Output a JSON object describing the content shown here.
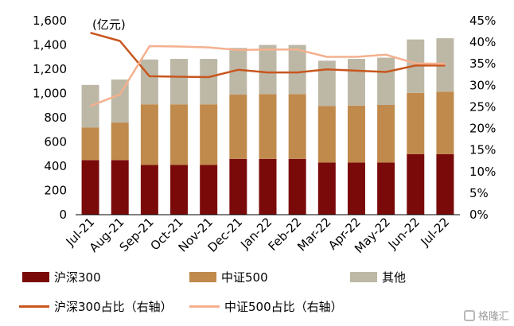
{
  "chart_data": {
    "type": "bar",
    "stacked": true,
    "unit_label": "(亿元)",
    "categories": [
      "Jul-21",
      "Aug-21",
      "Sep-21",
      "Oct-21",
      "Nov-21",
      "Dec-21",
      "Jan-22",
      "Feb-22",
      "Mar-22",
      "Apr-22",
      "May-22",
      "Jun-22",
      "Jul-22"
    ],
    "ylim": [
      0,
      1600
    ],
    "yticks": [
      "0",
      "200",
      "400",
      "600",
      "800",
      "1,000",
      "1,200",
      "1,400",
      "1,600"
    ],
    "y2lim": [
      0,
      45
    ],
    "y2ticks": [
      "0%",
      "5%",
      "10%",
      "15%",
      "20%",
      "25%",
      "30%",
      "35%",
      "40%",
      "45%"
    ],
    "series": [
      {
        "name": "沪深300",
        "kind": "bar",
        "color": "#7a0a0a",
        "values": [
          450,
          450,
          410,
          410,
          410,
          460,
          460,
          460,
          430,
          430,
          430,
          500,
          500
        ]
      },
      {
        "name": "中证500",
        "kind": "bar",
        "color": "#c08a4c",
        "values": [
          270,
          310,
          500,
          500,
          500,
          530,
          535,
          535,
          465,
          470,
          475,
          505,
          515
        ]
      },
      {
        "name": "其他",
        "kind": "bar",
        "color": "#bdb8a6",
        "values": [
          350,
          355,
          370,
          375,
          375,
          385,
          405,
          405,
          375,
          385,
          390,
          440,
          440
        ]
      },
      {
        "name": "沪深300占比（右轴）",
        "kind": "line",
        "axis": "right",
        "color": "#c8561e",
        "values": [
          42.2,
          40.3,
          32.1,
          32.0,
          31.9,
          33.6,
          33.0,
          33.0,
          33.7,
          33.4,
          33.1,
          34.6,
          34.6
        ]
      },
      {
        "name": "中证500占比（右轴）",
        "kind": "line",
        "axis": "right",
        "color": "#f4b08e",
        "values": [
          25.2,
          27.9,
          39.1,
          39.0,
          38.8,
          38.2,
          38.3,
          38.3,
          36.6,
          36.6,
          37.1,
          35.1,
          35.0
        ]
      }
    ],
    "grid": false,
    "legend_position": "bottom"
  },
  "watermark": "格隆汇"
}
